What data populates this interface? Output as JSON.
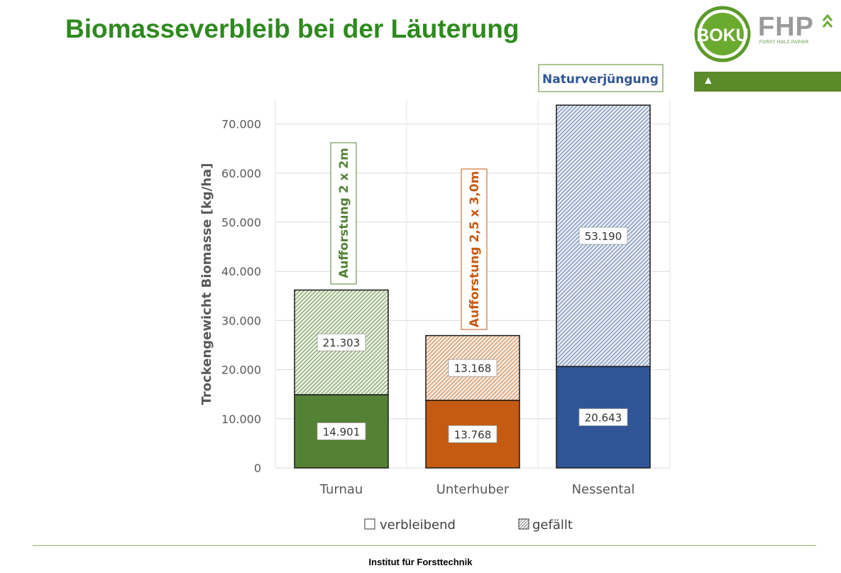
{
  "header": {
    "title": "Biomasseverbleib bei der Läuterung",
    "logo_boku": "BOKU",
    "logo_fhp": "FHP",
    "logo_fhp_sub": "FORST HOLZ PAPIER"
  },
  "footer": {
    "text": "Institut für Forsttechnik"
  },
  "colors": {
    "title": "#2e8a1e",
    "turnau": "#548235",
    "unterhuber": "#c55a11",
    "nessental": "#2f5597",
    "accent_bar": "#5b8a2a"
  },
  "chart_data": {
    "type": "bar",
    "stacked": true,
    "categories": [
      "Turnau",
      "Unterhuber",
      "Nessental"
    ],
    "series": [
      {
        "name": "verbleibend",
        "values": [
          14901,
          13768,
          20643
        ],
        "labels": [
          "14.901",
          "13.768",
          "20.643"
        ],
        "pattern": "solid"
      },
      {
        "name": "gefällt",
        "values": [
          21303,
          13168,
          53190
        ],
        "labels": [
          "21.303",
          "13.168",
          "53.190"
        ],
        "pattern": "hatched"
      }
    ],
    "ylabel": "Trockengewicht Biomasse [kg/ha]",
    "xlabel": "",
    "ylim": [
      0,
      75000
    ],
    "yticks": [
      0,
      10000,
      20000,
      30000,
      40000,
      50000,
      60000,
      70000
    ],
    "ytick_labels": [
      "0",
      "10.000",
      "20.000",
      "30.000",
      "40.000",
      "50.000",
      "60.000",
      "70.000"
    ],
    "grid": true,
    "legend_position": "bottom",
    "annotations": [
      {
        "category": "Turnau",
        "text": "Aufforstung 2 x 2m",
        "color": "#548235"
      },
      {
        "category": "Unterhuber",
        "text": "Aufforstung 2,5 x 3,0m",
        "color": "#c55a11"
      },
      {
        "category": "Nessental",
        "text": "Naturverjüngung",
        "color": "#2f5597"
      }
    ]
  }
}
